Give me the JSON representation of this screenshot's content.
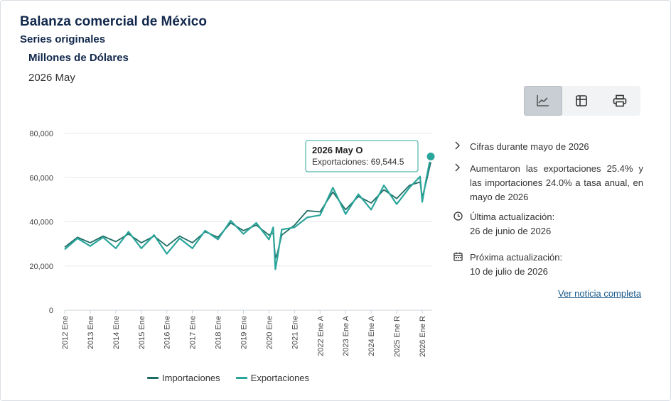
{
  "header": {
    "title": "Balanza comercial de México",
    "subtitle": "Series originales",
    "units": "Millones de Dólares",
    "period": "2026 May"
  },
  "toolbar": {
    "buttons": [
      {
        "icon": "line-chart-icon",
        "active": true
      },
      {
        "icon": "table-icon",
        "active": false
      },
      {
        "icon": "printer-icon",
        "active": false
      }
    ]
  },
  "side": {
    "item1": "Cifras durante mayo de 2026",
    "item2": "Aumentaron las exportaciones 25.4% y las importaciones 24.0% a tasa anual, en mayo de 2026",
    "updated_label": "Última actualización:",
    "updated_date": "26 de junio de 2026",
    "next_label": "Próxima actualización:",
    "next_date": "10 de julio de 2026",
    "link": "Ver noticia completa"
  },
  "tooltip": {
    "title": "2026 May O",
    "text": "Exportaciones: 69,544.5"
  },
  "chart_data": {
    "type": "line",
    "ylim": [
      0,
      80000
    ],
    "yticks": [
      0,
      20000,
      40000,
      60000,
      80000
    ],
    "ytick_labels": [
      "0",
      "20,000",
      "40,000",
      "60,000",
      "80,000"
    ],
    "xtick_labels": [
      "2012 Ene",
      "2013 Ene",
      "2014 Ene",
      "2015 Ene",
      "2016 Ene",
      "2017 Ene",
      "2018 Ene",
      "2019 Ene",
      "2020 Ene",
      "2021 Ene",
      "2022 Ene A",
      "2023 Ene A",
      "2024 Ene A",
      "2025 Ene R",
      "2026 Ene R"
    ],
    "legend": "bottom",
    "grid": true,
    "series": [
      {
        "name": "Importaciones",
        "color": "#1e6b63",
        "x": [
          "2012-01",
          "2012-07",
          "2013-01",
          "2013-07",
          "2014-01",
          "2014-07",
          "2015-01",
          "2015-07",
          "2016-01",
          "2016-07",
          "2017-01",
          "2017-07",
          "2018-01",
          "2018-07",
          "2019-01",
          "2019-07",
          "2020-01",
          "2020-03",
          "2020-04",
          "2020-05",
          "2020-07",
          "2021-01",
          "2021-07",
          "2022-01",
          "2022-07",
          "2023-01",
          "2023-07",
          "2024-01",
          "2024-07",
          "2025-01",
          "2025-07",
          "2025-12",
          "2026-01",
          "2026-03",
          "2026-05"
        ],
        "values": [
          28500,
          33000,
          30500,
          33500,
          31000,
          34500,
          30500,
          33500,
          29000,
          33500,
          30500,
          35500,
          33000,
          39500,
          36000,
          38500,
          34000,
          35000,
          23500,
          26000,
          34000,
          38500,
          45000,
          44500,
          53500,
          45500,
          51500,
          48500,
          54500,
          50500,
          56500,
          58000,
          51000,
          58500,
          67000
        ]
      },
      {
        "name": "Exportaciones",
        "color": "#2aa59b",
        "x": [
          "2012-01",
          "2012-07",
          "2013-01",
          "2013-07",
          "2014-01",
          "2014-07",
          "2015-01",
          "2015-07",
          "2016-01",
          "2016-07",
          "2017-01",
          "2017-07",
          "2018-01",
          "2018-07",
          "2019-01",
          "2019-07",
          "2020-01",
          "2020-03",
          "2020-04",
          "2020-05",
          "2020-07",
          "2021-01",
          "2021-07",
          "2022-01",
          "2022-07",
          "2023-01",
          "2023-07",
          "2024-01",
          "2024-07",
          "2025-01",
          "2025-07",
          "2025-12",
          "2026-01",
          "2026-03",
          "2026-05"
        ],
        "values": [
          27500,
          32500,
          29000,
          33000,
          28000,
          35500,
          28000,
          34000,
          25500,
          32500,
          28000,
          36000,
          32000,
          40500,
          34500,
          39500,
          32000,
          37500,
          18500,
          24000,
          36500,
          37500,
          42000,
          43000,
          55500,
          43500,
          52500,
          45500,
          56500,
          48000,
          55500,
          60500,
          49000,
          60000,
          69544.5
        ]
      }
    ]
  }
}
